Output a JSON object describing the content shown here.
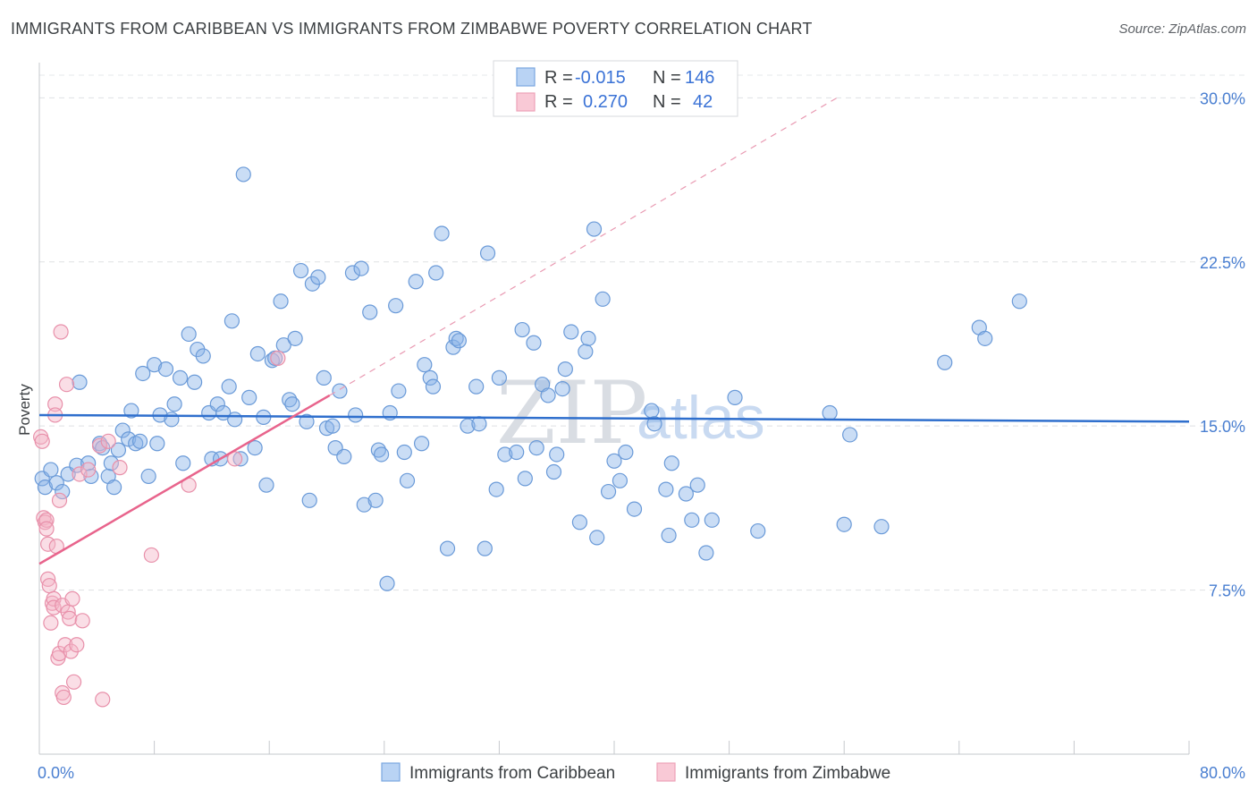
{
  "header": {
    "title": "IMMIGRANTS FROM CARIBBEAN VS IMMIGRANTS FROM ZIMBABWE POVERTY CORRELATION CHART",
    "source": "Source: ZipAtlas.com"
  },
  "watermark": {
    "zip": "ZIP",
    "atlas": "atlas"
  },
  "legend_top": {
    "rows": [
      {
        "r_label": "R =",
        "r_value": "-0.015",
        "n_label": "N =",
        "n_value": "146"
      },
      {
        "r_label": "R =",
        "r_value": "0.270",
        "n_label": "N =",
        "n_value": "42"
      }
    ]
  },
  "chart_data": {
    "type": "scatter",
    "title": "IMMIGRANTS FROM CARIBBEAN VS IMMIGRANTS FROM ZIMBABWE POVERTY CORRELATION CHART",
    "xlabel": "",
    "ylabel": "Poverty",
    "xlim": [
      0,
      80
    ],
    "ylim": [
      0,
      31.2
    ],
    "x_tick_labels": [
      {
        "value": 0,
        "label": "0.0%"
      },
      {
        "value": 80,
        "label": "80.0%"
      }
    ],
    "y_ticks": [
      {
        "value": 7.5,
        "label": "7.5%"
      },
      {
        "value": 15,
        "label": "15.0%"
      },
      {
        "value": 22.5,
        "label": "22.5%"
      },
      {
        "value": 30,
        "label": "30.0%"
      }
    ],
    "grid": "horizontal dashed",
    "legend": "bottom-center",
    "series": [
      {
        "name": "Immigrants from Caribbean",
        "color": "#8ab4e8",
        "stroke": "#6a9ad8",
        "trend": {
          "x": [
            0,
            80
          ],
          "y": [
            15.5,
            15.2
          ],
          "color": "#2f6fcd"
        },
        "points": [
          [
            0.2,
            12.6
          ],
          [
            0.4,
            12.2
          ],
          [
            0.8,
            13.0
          ],
          [
            1.2,
            12.4
          ],
          [
            1.6,
            12.0
          ],
          [
            2.0,
            12.8
          ],
          [
            2.6,
            13.2
          ],
          [
            2.8,
            17.0
          ],
          [
            3.4,
            13.3
          ],
          [
            3.6,
            12.7
          ],
          [
            4.2,
            14.2
          ],
          [
            4.4,
            14.0
          ],
          [
            4.8,
            12.7
          ],
          [
            5.0,
            13.3
          ],
          [
            5.2,
            12.2
          ],
          [
            5.5,
            13.9
          ],
          [
            5.8,
            14.8
          ],
          [
            6.2,
            14.4
          ],
          [
            6.4,
            15.7
          ],
          [
            6.7,
            14.2
          ],
          [
            7.0,
            14.3
          ],
          [
            7.2,
            17.4
          ],
          [
            7.6,
            12.7
          ],
          [
            8.0,
            17.8
          ],
          [
            8.2,
            14.2
          ],
          [
            8.4,
            15.5
          ],
          [
            8.8,
            17.6
          ],
          [
            9.2,
            15.3
          ],
          [
            9.4,
            16.0
          ],
          [
            9.8,
            17.2
          ],
          [
            10.0,
            13.3
          ],
          [
            10.4,
            19.2
          ],
          [
            10.8,
            17.0
          ],
          [
            11.0,
            18.5
          ],
          [
            11.4,
            18.2
          ],
          [
            11.8,
            15.6
          ],
          [
            12.0,
            13.5
          ],
          [
            12.4,
            16.0
          ],
          [
            12.6,
            13.5
          ],
          [
            12.8,
            15.6
          ],
          [
            13.2,
            16.8
          ],
          [
            13.4,
            19.8
          ],
          [
            13.6,
            15.3
          ],
          [
            14.0,
            13.5
          ],
          [
            14.2,
            26.5
          ],
          [
            14.6,
            16.3
          ],
          [
            15.0,
            14.0
          ],
          [
            15.2,
            18.3
          ],
          [
            15.6,
            15.4
          ],
          [
            15.8,
            12.3
          ],
          [
            16.2,
            18.0
          ],
          [
            16.4,
            18.1
          ],
          [
            16.8,
            20.7
          ],
          [
            17.0,
            18.7
          ],
          [
            17.4,
            16.2
          ],
          [
            17.6,
            16.0
          ],
          [
            17.8,
            19.0
          ],
          [
            18.2,
            22.1
          ],
          [
            18.6,
            15.2
          ],
          [
            18.8,
            11.6
          ],
          [
            19.0,
            21.5
          ],
          [
            19.4,
            21.8
          ],
          [
            19.8,
            17.2
          ],
          [
            20.0,
            14.9
          ],
          [
            20.4,
            15.0
          ],
          [
            20.6,
            14.0
          ],
          [
            20.9,
            16.6
          ],
          [
            21.2,
            13.6
          ],
          [
            21.8,
            22.0
          ],
          [
            22.0,
            15.5
          ],
          [
            22.4,
            22.2
          ],
          [
            22.6,
            11.4
          ],
          [
            23.0,
            20.2
          ],
          [
            23.4,
            11.6
          ],
          [
            23.6,
            13.9
          ],
          [
            23.8,
            13.7
          ],
          [
            24.2,
            7.8
          ],
          [
            24.4,
            15.6
          ],
          [
            24.8,
            20.5
          ],
          [
            25.0,
            16.6
          ],
          [
            25.4,
            13.8
          ],
          [
            25.6,
            12.5
          ],
          [
            26.2,
            21.6
          ],
          [
            26.6,
            14.2
          ],
          [
            26.8,
            17.8
          ],
          [
            27.2,
            17.2
          ],
          [
            27.4,
            16.8
          ],
          [
            27.6,
            22.0
          ],
          [
            28.0,
            23.8
          ],
          [
            28.4,
            9.4
          ],
          [
            28.8,
            18.6
          ],
          [
            29.0,
            19.0
          ],
          [
            29.2,
            18.9
          ],
          [
            29.8,
            15.0
          ],
          [
            30.4,
            16.8
          ],
          [
            30.6,
            15.1
          ],
          [
            31.0,
            9.4
          ],
          [
            31.2,
            22.9
          ],
          [
            31.8,
            12.1
          ],
          [
            32.0,
            17.2
          ],
          [
            32.4,
            13.7
          ],
          [
            33.2,
            13.8
          ],
          [
            33.6,
            19.4
          ],
          [
            33.8,
            12.6
          ],
          [
            34.4,
            18.8
          ],
          [
            34.6,
            14.0
          ],
          [
            35.0,
            16.9
          ],
          [
            35.4,
            16.4
          ],
          [
            35.8,
            12.9
          ],
          [
            36.0,
            13.7
          ],
          [
            36.4,
            16.7
          ],
          [
            36.6,
            17.6
          ],
          [
            37.0,
            19.3
          ],
          [
            37.6,
            10.6
          ],
          [
            38.0,
            18.4
          ],
          [
            38.2,
            19.0
          ],
          [
            38.6,
            24.0
          ],
          [
            38.8,
            9.9
          ],
          [
            39.2,
            20.8
          ],
          [
            39.6,
            12.0
          ],
          [
            40.0,
            13.4
          ],
          [
            40.4,
            12.5
          ],
          [
            40.8,
            13.8
          ],
          [
            41.4,
            11.2
          ],
          [
            42.6,
            15.7
          ],
          [
            42.8,
            15.1
          ],
          [
            43.6,
            12.1
          ],
          [
            43.8,
            10.0
          ],
          [
            44.0,
            13.3
          ],
          [
            45.0,
            11.9
          ],
          [
            45.4,
            10.7
          ],
          [
            45.8,
            12.3
          ],
          [
            46.4,
            9.2
          ],
          [
            46.8,
            10.7
          ],
          [
            48.4,
            16.3
          ],
          [
            50.0,
            10.2
          ],
          [
            55.0,
            15.6
          ],
          [
            56.0,
            10.5
          ],
          [
            56.4,
            14.6
          ],
          [
            58.6,
            10.4
          ],
          [
            63.0,
            17.9
          ],
          [
            65.4,
            19.5
          ],
          [
            65.8,
            19.0
          ],
          [
            68.2,
            20.7
          ]
        ]
      },
      {
        "name": "Immigrants from Zimbabwe",
        "color": "#f4b6c8",
        "stroke": "#e890aa",
        "trend": {
          "x": [
            0,
            20.2
          ],
          "y": [
            8.7,
            16.4
          ],
          "dashed_extension_to": [
            55.5,
            30.0
          ],
          "color": "#e8648c"
        },
        "points": [
          [
            0.1,
            14.5
          ],
          [
            0.2,
            14.3
          ],
          [
            0.3,
            10.8
          ],
          [
            0.4,
            10.6
          ],
          [
            0.5,
            10.7
          ],
          [
            0.5,
            10.3
          ],
          [
            0.6,
            9.6
          ],
          [
            0.6,
            8.0
          ],
          [
            0.7,
            7.7
          ],
          [
            0.8,
            6.0
          ],
          [
            0.9,
            6.9
          ],
          [
            1.0,
            7.1
          ],
          [
            1.0,
            6.7
          ],
          [
            1.1,
            16.0
          ],
          [
            1.1,
            15.5
          ],
          [
            1.2,
            9.5
          ],
          [
            1.3,
            4.4
          ],
          [
            1.4,
            4.6
          ],
          [
            1.4,
            11.6
          ],
          [
            1.5,
            19.3
          ],
          [
            1.6,
            6.8
          ],
          [
            1.6,
            2.8
          ],
          [
            1.7,
            2.6
          ],
          [
            1.8,
            5.0
          ],
          [
            1.9,
            16.9
          ],
          [
            2.0,
            6.5
          ],
          [
            2.1,
            6.2
          ],
          [
            2.2,
            4.7
          ],
          [
            2.3,
            7.1
          ],
          [
            2.4,
            3.3
          ],
          [
            2.6,
            5.0
          ],
          [
            2.8,
            12.8
          ],
          [
            3.0,
            6.1
          ],
          [
            3.4,
            13.0
          ],
          [
            4.2,
            14.1
          ],
          [
            4.4,
            2.5
          ],
          [
            4.8,
            14.3
          ],
          [
            5.6,
            13.1
          ],
          [
            7.8,
            9.1
          ],
          [
            10.4,
            12.3
          ],
          [
            16.6,
            18.1
          ],
          [
            13.6,
            13.5
          ]
        ]
      }
    ]
  },
  "legend_bottom": {
    "items": [
      {
        "label": "Immigrants from Caribbean",
        "color": "#8ab4e8"
      },
      {
        "label": "Immigrants from Zimbabwe",
        "color": "#f4b6c8"
      }
    ]
  }
}
